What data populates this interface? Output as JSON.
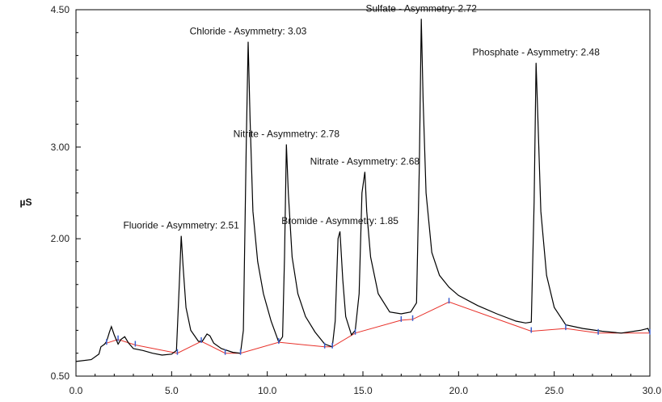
{
  "chart_data": {
    "type": "line",
    "title": "",
    "xlabel": "",
    "ylabel": "µS",
    "xlim": [
      0,
      30
    ],
    "ylim": [
      0.5,
      4.5
    ],
    "x_ticks": [
      "0.0",
      "5.0",
      "10.0",
      "15.0",
      "20.0",
      "25.0",
      "30.0"
    ],
    "y_ticks": [
      "0.50",
      "2.00",
      "3.00",
      "4.50"
    ],
    "grid": false,
    "colors": {
      "trace": "#000000",
      "baseline": "#e8312a",
      "markers": "#3b5fd0"
    },
    "series": [
      {
        "x": [
          0.0,
          0.8,
          1.2,
          1.3,
          1.5,
          1.6,
          1.75,
          1.85,
          2.0,
          2.2,
          2.35,
          2.55,
          2.75,
          3.0,
          3.5,
          4.0,
          4.5,
          5.0,
          5.25,
          5.4,
          5.5,
          5.6,
          5.75,
          6.0,
          6.4,
          6.6,
          6.85,
          7.0,
          7.2,
          7.6,
          8.2,
          8.6,
          8.75,
          8.9,
          9.0,
          9.1,
          9.25,
          9.5,
          9.8,
          10.2,
          10.6,
          10.8,
          10.9,
          11.0,
          11.1,
          11.3,
          11.6,
          12.0,
          12.5,
          13.0,
          13.4,
          13.55,
          13.7,
          13.8,
          13.95,
          14.1,
          14.4,
          14.6,
          14.8,
          14.95,
          15.1,
          15.2,
          15.4,
          15.8,
          16.4,
          17.0,
          17.5,
          17.8,
          17.95,
          18.05,
          18.15,
          18.3,
          18.6,
          19.0,
          19.5,
          20.0,
          21.0,
          22.0,
          23.0,
          23.5,
          23.8,
          23.95,
          24.05,
          24.15,
          24.3,
          24.6,
          25.0,
          25.6,
          26.5,
          27.5,
          28.5,
          29.5,
          29.9,
          30.0
        ],
        "y": [
          0.66,
          0.68,
          0.74,
          0.82,
          0.85,
          0.88,
          0.98,
          1.04,
          0.95,
          0.85,
          0.9,
          0.93,
          0.86,
          0.8,
          0.78,
          0.75,
          0.73,
          0.74,
          0.78,
          1.5,
          2.03,
          1.7,
          1.25,
          1.0,
          0.88,
          0.88,
          0.96,
          0.94,
          0.86,
          0.8,
          0.76,
          0.75,
          1.0,
          3.0,
          4.15,
          3.3,
          2.3,
          1.75,
          1.4,
          1.1,
          0.87,
          0.93,
          1.8,
          3.03,
          2.5,
          1.8,
          1.4,
          1.15,
          0.98,
          0.85,
          0.82,
          1.1,
          2.0,
          2.08,
          1.55,
          1.15,
          0.95,
          1.0,
          1.4,
          2.5,
          2.73,
          2.3,
          1.8,
          1.4,
          1.2,
          1.18,
          1.2,
          1.3,
          2.8,
          4.4,
          3.5,
          2.5,
          1.85,
          1.6,
          1.47,
          1.38,
          1.27,
          1.18,
          1.1,
          1.08,
          1.09,
          2.4,
          3.92,
          3.3,
          2.3,
          1.6,
          1.25,
          1.06,
          1.02,
          0.99,
          0.97,
          1.0,
          1.02,
          0.97
        ]
      },
      {
        "x": [
          1.6,
          2.2,
          3.1,
          5.3,
          6.55,
          7.8,
          8.6,
          10.6,
          13.0,
          13.4,
          14.6,
          17.0,
          17.6,
          19.5,
          23.8,
          25.6,
          27.3,
          30.0
        ],
        "y": [
          0.86,
          0.9,
          0.84,
          0.75,
          0.88,
          0.75,
          0.75,
          0.87,
          0.82,
          0.82,
          0.97,
          1.11,
          1.12,
          1.31,
          0.99,
          1.02,
          0.97,
          0.97
        ]
      }
    ],
    "annotations": [
      {
        "text": "Fluoride - Asymmetry: 2.51",
        "x": 5.5,
        "y": 2.03
      },
      {
        "text": "Chloride - Asymmetry: 3.03",
        "x": 9.0,
        "y": 4.15
      },
      {
        "text": "Nitrite - Asymmetry: 2.78",
        "x": 11.0,
        "y": 3.03
      },
      {
        "text": "Nitrate - Asymmetry: 2.68",
        "x": 15.1,
        "y": 2.73
      },
      {
        "text": "Bromide - Asymmetry: 1.85",
        "x": 13.8,
        "y": 2.08
      },
      {
        "text": "Sulfate - Asymmetry: 2.72",
        "x": 18.05,
        "y": 4.4
      },
      {
        "text": "Phosphate - Asymmetry: 2.48",
        "x": 24.05,
        "y": 3.92
      }
    ],
    "markers_x": [
      1.6,
      2.2,
      3.1,
      5.3,
      6.55,
      7.8,
      8.6,
      10.6,
      13.0,
      13.4,
      14.6,
      17.0,
      17.6,
      19.5,
      23.8,
      25.6,
      27.3,
      30.0
    ]
  }
}
